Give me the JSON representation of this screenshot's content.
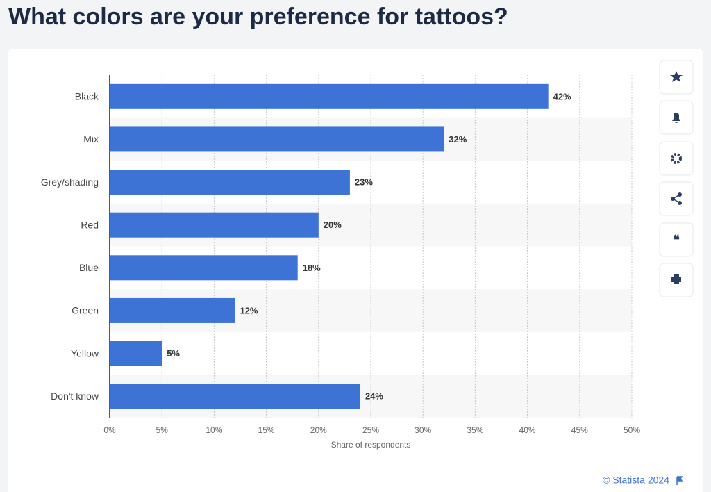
{
  "chart_data": {
    "type": "bar",
    "orientation": "horizontal",
    "title": "What colors are your preference for tattoos?",
    "categories": [
      "Black",
      "Mix",
      "Grey/shading",
      "Red",
      "Blue",
      "Green",
      "Yellow",
      "Don't know"
    ],
    "values": [
      42,
      32,
      23,
      20,
      18,
      12,
      5,
      24
    ],
    "value_labels": [
      "42%",
      "32%",
      "23%",
      "20%",
      "18%",
      "12%",
      "5%",
      "24%"
    ],
    "color": "#3e73d6",
    "xlim": [
      0,
      50
    ],
    "xticks": [
      {
        "value": 0,
        "label": "0%"
      },
      {
        "value": 5,
        "label": "5%"
      },
      {
        "value": 10,
        "label": "10%"
      },
      {
        "value": 15,
        "label": "15%"
      },
      {
        "value": 20,
        "label": "20%"
      },
      {
        "value": 25,
        "label": "25%"
      },
      {
        "value": 30,
        "label": "30%"
      },
      {
        "value": 35,
        "label": "35%"
      },
      {
        "value": 40,
        "label": "40%"
      },
      {
        "value": 45,
        "label": "45%"
      },
      {
        "value": 50,
        "label": "50%"
      }
    ],
    "xlabel": "Share of respondents",
    "grid": true,
    "source": "© Statista 2024"
  }
}
